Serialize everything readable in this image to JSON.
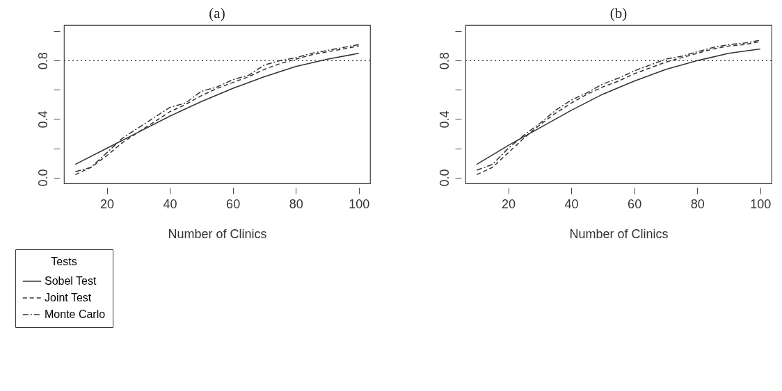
{
  "chart_data": [
    {
      "type": "line",
      "title": "(a)",
      "xlabel": "Number of Clinics",
      "legend_title": "Tests",
      "legend": "bottom left",
      "xlim": [
        6.4,
        103.6
      ],
      "ylim": [
        -0.04,
        1.044
      ],
      "xticks": [
        20,
        40,
        60,
        80,
        100
      ],
      "yticks": [
        {
          "value": 0,
          "label": "0.0"
        },
        {
          "value": 0.2,
          "label": null
        },
        {
          "value": 0.4,
          "label": "0.4"
        },
        {
          "value": 0.6,
          "label": null
        },
        {
          "value": 0.8,
          "label": "0.8"
        },
        {
          "value": 1.0,
          "label": null
        }
      ],
      "ref_lines": [
        {
          "axis": "y",
          "value": 0.8,
          "line_style": "dotted"
        }
      ],
      "series": [
        {
          "name": "Sobel Test",
          "color": "#333333",
          "line_style": "solid",
          "x": [
            10,
            20,
            30,
            40,
            50,
            60,
            70,
            80,
            90,
            100
          ],
          "values": [
            0.09,
            0.2,
            0.31,
            0.42,
            0.52,
            0.61,
            0.69,
            0.76,
            0.81,
            0.85
          ]
        },
        {
          "name": "Joint Test",
          "color": "#333333",
          "line_style": "dashed",
          "x": [
            10,
            15,
            20,
            25,
            30,
            35,
            40,
            45,
            50,
            55,
            60,
            65,
            70,
            75,
            80,
            85,
            90,
            95,
            100
          ],
          "values": [
            0.02,
            0.07,
            0.15,
            0.24,
            0.31,
            0.38,
            0.45,
            0.5,
            0.56,
            0.61,
            0.65,
            0.69,
            0.74,
            0.78,
            0.81,
            0.84,
            0.86,
            0.88,
            0.9
          ]
        },
        {
          "name": "Monte Carlo",
          "color": "#333333",
          "line_style": "dashdot",
          "x": [
            10,
            15,
            20,
            25,
            30,
            35,
            40,
            45,
            50,
            55,
            60,
            65,
            70,
            75,
            80,
            85,
            90,
            95,
            100
          ],
          "values": [
            0.04,
            0.07,
            0.17,
            0.27,
            0.34,
            0.41,
            0.48,
            0.51,
            0.59,
            0.62,
            0.67,
            0.7,
            0.77,
            0.8,
            0.82,
            0.85,
            0.87,
            0.89,
            0.91
          ]
        }
      ]
    },
    {
      "type": "line",
      "title": "(b)",
      "xlabel": "Number of Clinics",
      "legend": false,
      "xlim": [
        6.4,
        103.6
      ],
      "ylim": [
        -0.04,
        1.044
      ],
      "xticks": [
        20,
        40,
        60,
        80,
        100
      ],
      "yticks": [
        {
          "value": 0,
          "label": "0.0"
        },
        {
          "value": 0.2,
          "label": null
        },
        {
          "value": 0.4,
          "label": "0.4"
        },
        {
          "value": 0.6,
          "label": null
        },
        {
          "value": 0.8,
          "label": "0.8"
        },
        {
          "value": 1.0,
          "label": null
        }
      ],
      "ref_lines": [
        {
          "axis": "y",
          "value": 0.8,
          "line_style": "dotted"
        }
      ],
      "series": [
        {
          "color": "#333333",
          "line_style": "solid",
          "x": [
            10,
            20,
            30,
            40,
            50,
            60,
            70,
            80,
            90,
            100
          ],
          "values": [
            0.09,
            0.22,
            0.34,
            0.46,
            0.57,
            0.66,
            0.74,
            0.8,
            0.85,
            0.88
          ]
        },
        {
          "color": "#333333",
          "line_style": "dashed",
          "x": [
            10,
            15,
            20,
            25,
            30,
            35,
            40,
            45,
            50,
            55,
            60,
            65,
            70,
            75,
            80,
            85,
            90,
            95,
            100
          ],
          "values": [
            0.02,
            0.07,
            0.17,
            0.27,
            0.36,
            0.44,
            0.51,
            0.57,
            0.62,
            0.66,
            0.71,
            0.75,
            0.79,
            0.82,
            0.85,
            0.88,
            0.9,
            0.91,
            0.93
          ]
        },
        {
          "color": "#333333",
          "line_style": "dashdot",
          "x": [
            10,
            15,
            20,
            25,
            30,
            35,
            40,
            45,
            50,
            55,
            60,
            65,
            70,
            75,
            80,
            85,
            90,
            95,
            100
          ],
          "values": [
            0.05,
            0.09,
            0.2,
            0.29,
            0.37,
            0.46,
            0.53,
            0.58,
            0.64,
            0.68,
            0.73,
            0.77,
            0.81,
            0.83,
            0.86,
            0.89,
            0.91,
            0.92,
            0.94
          ]
        }
      ]
    }
  ]
}
